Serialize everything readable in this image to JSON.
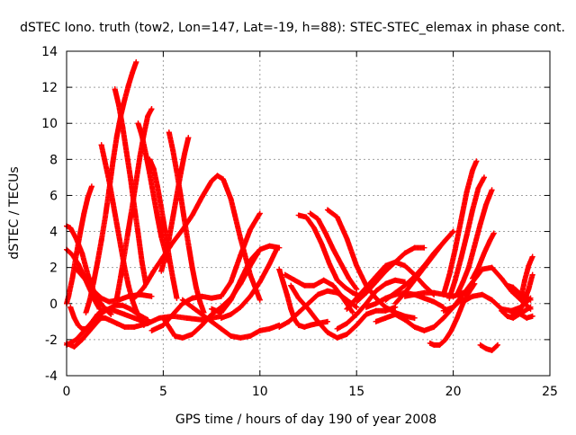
{
  "chart_data": {
    "type": "scatter",
    "title": "dSTEC Iono. truth (tow2, Lon=147, Lat=-19, h=88): STEC-STEC_elemax in phase cont.",
    "xlabel": "GPS time / hours of day 190 of year 2008",
    "ylabel": "dSTEC  / TECUs",
    "xlim": [
      0,
      25
    ],
    "ylim": [
      -4,
      14
    ],
    "xticks": [
      0,
      5,
      10,
      15,
      20,
      25
    ],
    "yticks": [
      -4,
      -2,
      0,
      2,
      4,
      6,
      8,
      10,
      12,
      14
    ],
    "grid": true,
    "marker": "+",
    "colors": {
      "series": "#ff0000",
      "grid": "#a0a0a0",
      "frame": "#000000"
    },
    "series": [
      {
        "x": [
          0.0,
          0.2,
          0.5,
          0.8,
          1.1,
          1.4,
          1.7,
          2.0,
          2.3
        ],
        "y": [
          4.3,
          4.2,
          3.6,
          2.8,
          1.6,
          0.7,
          0.1,
          -0.3,
          -0.6
        ]
      },
      {
        "x": [
          0.0,
          0.3,
          0.6,
          0.9,
          1.2,
          1.5,
          1.7
        ],
        "y": [
          3.0,
          2.7,
          2.2,
          1.5,
          0.8,
          0.1,
          -0.3
        ]
      },
      {
        "x": [
          0.0,
          0.4,
          0.8,
          1.2,
          1.6,
          1.8,
          2.0,
          2.2,
          2.6,
          3.0,
          3.5,
          4.2,
          4.8,
          5.5,
          6.2,
          7.0,
          7.5,
          8.0
        ],
        "y": [
          -2.2,
          -2.4,
          -2.0,
          -1.5,
          -1.0,
          -0.8,
          -0.8,
          -0.9,
          -1.1,
          -1.3,
          -1.3,
          -1.1,
          -0.8,
          -0.7,
          -0.8,
          -0.9,
          -0.8,
          -0.7
        ]
      },
      {
        "x": [
          0.0,
          0.5,
          1.0,
          1.5,
          2.0,
          2.5,
          2.9,
          3.3,
          3.7,
          4.2
        ],
        "y": [
          -2.3,
          -2.0,
          -1.4,
          -0.8,
          -0.4,
          -0.1,
          -0.1,
          -0.3,
          -0.6,
          -0.9
        ]
      },
      {
        "x": [
          0.0,
          0.1,
          0.3,
          0.5,
          0.7,
          0.9,
          1.1,
          1.3
        ],
        "y": [
          0.0,
          0.4,
          1.4,
          2.7,
          3.9,
          5.0,
          5.9,
          6.5
        ]
      },
      {
        "x": [
          0.4,
          0.6,
          1.0,
          1.4,
          1.8,
          2.2,
          2.7,
          3.2,
          3.8,
          4.4
        ],
        "y": [
          2.0,
          1.8,
          1.3,
          0.7,
          0.3,
          0.1,
          0.2,
          0.4,
          0.5,
          0.4
        ]
      },
      {
        "x": [
          0.2,
          0.4,
          0.6,
          0.8,
          1.0,
          1.2,
          1.4,
          1.6,
          2.0,
          2.5,
          3.0,
          3.5,
          4.0
        ],
        "y": [
          -0.2,
          -0.8,
          -1.2,
          -1.4,
          -1.4,
          -1.2,
          -0.9,
          -0.6,
          -0.3,
          -0.4,
          -0.6,
          -0.8,
          -1.0
        ]
      },
      {
        "x": [
          1.8,
          2.0,
          2.2,
          2.4,
          2.6,
          2.8,
          3.0,
          3.2,
          3.4,
          3.6,
          3.8,
          4.0
        ],
        "y": [
          8.8,
          7.8,
          6.8,
          5.6,
          4.4,
          3.2,
          2.0,
          1.0,
          0.2,
          -0.4,
          -0.8,
          -1.2
        ]
      },
      {
        "x": [
          1.0,
          1.2,
          1.4,
          1.6,
          1.8,
          2.0,
          2.2,
          2.4,
          2.6,
          2.8,
          3.0,
          3.2,
          3.4,
          3.6
        ],
        "y": [
          -0.5,
          0.2,
          1.2,
          2.3,
          3.5,
          4.8,
          6.3,
          7.9,
          9.3,
          10.4,
          11.3,
          12.1,
          12.8,
          13.4
        ]
      },
      {
        "x": [
          2.5,
          2.7,
          2.9,
          3.1,
          3.3,
          3.5,
          3.7,
          3.9,
          4.1
        ],
        "y": [
          11.9,
          11.0,
          9.8,
          8.4,
          7.0,
          5.4,
          3.9,
          2.3,
          1.1
        ]
      },
      {
        "x": [
          2.6,
          2.8,
          3.0,
          3.2,
          3.4,
          3.6,
          3.8,
          4.0,
          4.2,
          4.4
        ],
        "y": [
          0.3,
          1.5,
          2.8,
          4.1,
          5.4,
          6.8,
          8.2,
          9.4,
          10.4,
          10.8
        ]
      },
      {
        "x": [
          3.7,
          3.9,
          4.1,
          4.3,
          4.5,
          4.7,
          4.9,
          5.1,
          5.3
        ],
        "y": [
          10.0,
          9.3,
          8.3,
          7.2,
          6.0,
          4.8,
          3.7,
          2.9,
          2.3
        ]
      },
      {
        "x": [
          4.3,
          4.5,
          4.7,
          4.9,
          5.1,
          5.3,
          5.5,
          5.7
        ],
        "y": [
          8.0,
          7.5,
          6.5,
          5.3,
          4.0,
          2.6,
          1.4,
          0.3
        ]
      },
      {
        "x": [
          5.3,
          5.5,
          5.7,
          5.9,
          6.1,
          6.3,
          6.5,
          6.7,
          6.9,
          7.1
        ],
        "y": [
          9.5,
          8.5,
          7.3,
          6.0,
          4.6,
          3.3,
          2.0,
          0.9,
          0.1,
          -0.5
        ]
      },
      {
        "x": [
          4.9,
          5.1,
          5.3,
          5.5,
          5.7,
          5.9,
          6.1,
          6.3
        ],
        "y": [
          1.8,
          2.6,
          3.6,
          4.8,
          6.0,
          7.2,
          8.3,
          9.2
        ]
      },
      {
        "x": [
          3.5,
          4.0,
          4.5,
          5.0,
          5.5,
          6.0,
          6.5,
          7.0,
          7.5,
          7.8,
          8.1,
          8.5,
          9.0,
          9.5,
          10.0
        ],
        "y": [
          0.3,
          0.9,
          1.8,
          2.6,
          3.4,
          4.1,
          4.9,
          5.9,
          6.8,
          7.1,
          6.9,
          5.8,
          3.6,
          1.6,
          0.2
        ]
      },
      {
        "x": [
          4.4,
          5.0,
          5.5,
          6.0,
          6.5,
          7.0,
          7.5,
          8.0,
          8.5,
          9.0,
          9.5,
          10.0
        ],
        "y": [
          -1.5,
          -1.2,
          -0.6,
          0.0,
          0.3,
          0.4,
          0.3,
          0.4,
          1.2,
          2.7,
          4.1,
          5.0
        ]
      },
      {
        "x": [
          5.0,
          5.3,
          5.6,
          6.0,
          6.5,
          7.0,
          7.5,
          8.0,
          8.5,
          9.0,
          9.5,
          10.0
        ],
        "y": [
          -0.8,
          -1.3,
          -1.8,
          -1.9,
          -1.7,
          -1.2,
          -0.6,
          -0.2,
          0.3,
          1.1,
          2.1,
          3.0
        ]
      },
      {
        "x": [
          6.0,
          6.5,
          7.0,
          7.5,
          8.0,
          8.5,
          9.0,
          9.5,
          10.0,
          10.5,
          11.0
        ],
        "y": [
          0.2,
          -0.2,
          -0.6,
          -1.0,
          -1.4,
          -1.8,
          -1.9,
          -1.8,
          -1.5,
          -1.4,
          -1.2
        ]
      },
      {
        "x": [
          7.5,
          8.0,
          8.5,
          9.0,
          9.5,
          10.0,
          10.5,
          11.0
        ],
        "y": [
          -0.3,
          -0.5,
          0.2,
          1.3,
          2.4,
          3.0,
          3.2,
          3.1
        ]
      },
      {
        "x": [
          8.0,
          8.5,
          9.0,
          9.5,
          10.0,
          10.5,
          10.9
        ],
        "y": [
          -0.8,
          -0.6,
          -0.2,
          0.4,
          1.2,
          2.2,
          3.1
        ]
      },
      {
        "x": [
          11.0,
          11.2,
          11.4,
          11.6,
          11.8,
          12.0,
          12.3,
          12.6,
          13.0,
          13.5
        ],
        "y": [
          1.9,
          1.2,
          0.5,
          -0.3,
          -0.9,
          -1.2,
          -1.3,
          -1.2,
          -1.1,
          -1.0
        ]
      },
      {
        "x": [
          11.0,
          11.5,
          12.0,
          12.5,
          13.0,
          13.5,
          14.0,
          14.5,
          15.0
        ],
        "y": [
          -1.3,
          -1.0,
          -0.5,
          0.0,
          0.5,
          0.7,
          0.6,
          0.2,
          -0.2
        ]
      },
      {
        "x": [
          11.3,
          11.8,
          12.3,
          12.8,
          13.3,
          13.8,
          14.3,
          14.8
        ],
        "y": [
          1.6,
          1.3,
          1.0,
          1.0,
          1.3,
          1.0,
          0.3,
          -0.5
        ]
      },
      {
        "x": [
          11.6,
          12.0,
          12.5,
          13.0,
          13.5,
          14.0,
          14.5,
          15.0,
          15.5,
          16.0,
          16.5,
          17.0
        ],
        "y": [
          1.0,
          0.3,
          -0.3,
          -1.0,
          -1.6,
          -1.9,
          -1.7,
          -1.2,
          -0.6,
          -0.4,
          -0.4,
          -0.2
        ]
      },
      {
        "x": [
          12.0,
          12.4,
          12.8,
          13.2,
          13.6,
          14.0,
          14.4,
          14.8,
          15.2
        ],
        "y": [
          4.9,
          4.8,
          4.2,
          3.3,
          2.2,
          1.3,
          0.9,
          0.6,
          0.4
        ]
      },
      {
        "x": [
          12.6,
          13.0,
          13.4,
          13.8,
          14.2,
          14.6,
          15.0
        ],
        "y": [
          5.0,
          4.7,
          3.9,
          3.0,
          2.2,
          1.4,
          0.8
        ]
      },
      {
        "x": [
          13.5,
          14.0,
          14.5,
          15.0,
          15.5,
          16.0,
          16.5,
          17.0,
          17.5,
          18.0
        ],
        "y": [
          5.2,
          4.8,
          3.6,
          2.1,
          1.0,
          0.3,
          -0.2,
          -0.5,
          -0.7,
          -0.8
        ]
      },
      {
        "x": [
          14.0,
          14.5,
          15.0,
          15.5,
          16.0,
          16.5,
          17.0,
          17.5
        ],
        "y": [
          -1.4,
          -1.1,
          -0.6,
          0.0,
          0.7,
          1.1,
          1.3,
          1.2
        ]
      },
      {
        "x": [
          14.5,
          15.0,
          15.5,
          16.0,
          16.5,
          17.0,
          17.5,
          18.0,
          18.5,
          19.0
        ],
        "y": [
          -0.3,
          0.3,
          0.9,
          1.5,
          2.1,
          2.3,
          2.1,
          1.6,
          1.0,
          0.5
        ]
      },
      {
        "x": [
          15.0,
          15.5,
          16.0,
          16.5,
          17.0,
          17.5,
          18.0,
          18.5
        ],
        "y": [
          0.1,
          0.6,
          1.2,
          1.8,
          2.3,
          2.8,
          3.1,
          3.1
        ]
      },
      {
        "x": [
          15.5,
          16.0,
          16.5,
          17.0,
          17.5,
          18.0,
          18.5,
          19.0,
          19.5
        ],
        "y": [
          -0.2,
          0.0,
          0.3,
          0.5,
          0.6,
          0.5,
          0.3,
          0.1,
          -0.2
        ]
      },
      {
        "x": [
          16.0,
          16.5,
          17.0,
          17.5,
          18.0,
          18.5,
          19.0,
          19.5,
          20.0,
          20.5
        ],
        "y": [
          -1.0,
          -0.8,
          -0.6,
          -0.9,
          -1.3,
          -1.5,
          -1.3,
          -0.8,
          -0.2,
          0.3
        ]
      },
      {
        "x": [
          16.5,
          17.0,
          17.5,
          18.0,
          18.5,
          19.0,
          19.5,
          20.0
        ],
        "y": [
          0.2,
          0.6,
          1.0,
          1.5,
          2.1,
          2.8,
          3.4,
          4.0
        ]
      },
      {
        "x": [
          17.0,
          17.5,
          18.0,
          18.5,
          19.0,
          19.5,
          20.0
        ],
        "y": [
          0.0,
          0.6,
          1.3,
          2.0,
          2.7,
          3.4,
          4.0
        ]
      },
      {
        "x": [
          17.5,
          18.0,
          18.5,
          19.0,
          19.5,
          20.0,
          20.5
        ],
        "y": [
          0.4,
          0.5,
          0.6,
          0.6,
          0.5,
          0.4,
          0.6
        ]
      },
      {
        "x": [
          18.8,
          19.0,
          19.3,
          19.6,
          19.9,
          20.2,
          20.5,
          20.8,
          21.1
        ],
        "y": [
          -2.2,
          -2.3,
          -2.3,
          -2.0,
          -1.5,
          -0.8,
          0.0,
          0.6,
          1.1
        ]
      },
      {
        "x": [
          19.5,
          19.8,
          20.1,
          20.4,
          20.7,
          21.0,
          21.2
        ],
        "y": [
          0.5,
          1.6,
          3.0,
          4.6,
          6.2,
          7.4,
          7.9
        ]
      },
      {
        "x": [
          19.8,
          20.1,
          20.4,
          20.7,
          21.0,
          21.3,
          21.6
        ],
        "y": [
          0.3,
          1.3,
          2.5,
          3.8,
          5.2,
          6.4,
          7.0
        ]
      },
      {
        "x": [
          20.2,
          20.5,
          20.8,
          21.1,
          21.4,
          21.7,
          22.0
        ],
        "y": [
          0.5,
          1.2,
          2.0,
          3.2,
          4.4,
          5.5,
          6.3
        ]
      },
      {
        "x": [
          21.0,
          21.3,
          21.6,
          21.9,
          22.1
        ],
        "y": [
          1.4,
          2.0,
          2.8,
          3.5,
          3.9
        ]
      },
      {
        "x": [
          21.4,
          21.7,
          22.0,
          22.3
        ],
        "y": [
          -2.3,
          -2.5,
          -2.6,
          -2.3
        ]
      },
      {
        "x": [
          19.5,
          20.0,
          20.5,
          21.0,
          21.5,
          22.0,
          22.5,
          23.0,
          23.5,
          24.0
        ],
        "y": [
          -0.4,
          -0.2,
          0.5,
          1.2,
          1.9,
          2.0,
          1.4,
          0.7,
          0.2,
          -0.3
        ]
      },
      {
        "x": [
          20.5,
          21.0,
          21.5,
          22.0,
          22.5,
          23.0,
          23.5,
          24.0
        ],
        "y": [
          0.1,
          0.4,
          0.5,
          0.2,
          -0.3,
          -0.4,
          -0.2,
          0.3
        ]
      },
      {
        "x": [
          22.5,
          22.8,
          23.1,
          23.4,
          23.7,
          24.0
        ],
        "y": [
          -0.4,
          -0.7,
          -0.8,
          -0.6,
          -0.4,
          -0.2
        ]
      },
      {
        "x": [
          22.8,
          23.1,
          23.4,
          23.7,
          24.0
        ],
        "y": [
          1.0,
          0.9,
          0.6,
          0.4,
          0.2
        ]
      },
      {
        "x": [
          23.0,
          23.3,
          23.6,
          23.9,
          24.1
        ],
        "y": [
          -0.5,
          -0.6,
          -0.1,
          0.8,
          1.6
        ]
      },
      {
        "x": [
          23.5,
          23.7,
          23.9,
          24.1
        ],
        "y": [
          0.3,
          1.3,
          2.1,
          2.6
        ]
      },
      {
        "x": [
          23.5,
          23.8,
          24.1
        ],
        "y": [
          -0.6,
          -0.8,
          -0.7
        ]
      }
    ]
  }
}
